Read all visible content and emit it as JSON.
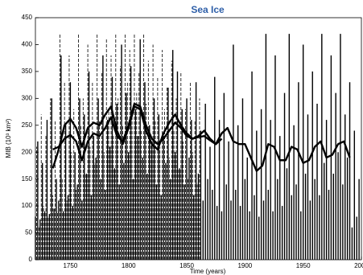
{
  "chart_data": {
    "type": "bar",
    "title": "Sea Ice",
    "xlabel": "Time (years)",
    "ylabel": "MIB (10³ km²)",
    "xlim": [
      1720,
      2000
    ],
    "ylim": [
      0,
      450
    ],
    "xticks": [
      1750,
      1800,
      1850,
      1900,
      1950,
      2000
    ],
    "yticks": [
      0,
      50,
      100,
      150,
      200,
      250,
      300,
      350,
      400,
      450
    ],
    "series": [
      {
        "color": "#000000",
        "style": "dashed",
        "x": [
          1721,
          1723,
          1725,
          1727,
          1729,
          1731,
          1733,
          1735,
          1737,
          1739,
          1741,
          1743,
          1745,
          1747,
          1749,
          1751,
          1753,
          1755,
          1757,
          1759,
          1761,
          1763,
          1765,
          1767,
          1769,
          1771,
          1773,
          1775,
          1777,
          1779,
          1781,
          1783,
          1785,
          1787,
          1789,
          1791,
          1793,
          1795,
          1797,
          1799,
          1801,
          1803,
          1805,
          1807,
          1809,
          1811,
          1813,
          1815,
          1817,
          1819,
          1821,
          1823,
          1825,
          1827,
          1829,
          1831,
          1833,
          1835,
          1837,
          1839,
          1841,
          1843,
          1845,
          1847,
          1849,
          1851,
          1853,
          1855,
          1857,
          1859,
          1861
        ],
        "values": [
          210,
          60,
          270,
          100,
          230,
          80,
          300,
          120,
          260,
          90,
          420,
          150,
          330,
          110,
          380,
          200,
          280,
          130,
          420,
          250,
          300,
          160,
          400,
          210,
          330,
          180,
          420,
          260,
          350,
          200,
          410,
          280,
          380,
          230,
          420,
          300,
          360,
          250,
          420,
          330,
          390,
          270,
          420,
          310,
          350,
          240,
          420,
          290,
          370,
          220,
          400,
          260,
          340,
          210,
          390,
          280,
          320,
          190,
          370,
          240,
          300,
          170,
          350,
          220,
          280,
          150,
          330,
          200,
          260,
          140,
          300
        ]
      },
      {
        "color": "#000000",
        "style": "solid",
        "x": [
          1720,
          1722,
          1724,
          1726,
          1728,
          1730,
          1732,
          1734,
          1736,
          1738,
          1740,
          1742,
          1744,
          1746,
          1748,
          1750,
          1752,
          1754,
          1756,
          1758,
          1760,
          1762,
          1764,
          1766,
          1768,
          1770,
          1772,
          1774,
          1776,
          1778,
          1780,
          1782,
          1784,
          1786,
          1788,
          1790,
          1792,
          1794,
          1796,
          1798,
          1800,
          1802,
          1804,
          1806,
          1808,
          1810,
          1812,
          1814,
          1816,
          1818,
          1820,
          1822,
          1824,
          1826,
          1828,
          1830,
          1832,
          1834,
          1836,
          1838,
          1840,
          1842,
          1844,
          1846,
          1848,
          1850,
          1852,
          1854,
          1856,
          1858,
          1860,
          1862,
          1864,
          1866,
          1868,
          1870,
          1872,
          1874,
          1876,
          1878,
          1880,
          1882,
          1884,
          1886,
          1888,
          1890,
          1892,
          1894,
          1896,
          1898,
          1900,
          1902,
          1904,
          1906,
          1908,
          1910,
          1912,
          1914,
          1916,
          1918,
          1920,
          1922,
          1924,
          1926,
          1928,
          1930,
          1932,
          1934,
          1936,
          1938,
          1940,
          1942,
          1944,
          1946,
          1948,
          1950,
          1952,
          1954,
          1956,
          1958,
          1960,
          1962,
          1964,
          1966,
          1968,
          1970,
          1972,
          1974,
          1976,
          1978,
          1980,
          1982,
          1984,
          1986,
          1988,
          1990,
          1992,
          1994,
          1996,
          1998
        ],
        "values": [
          80,
          220,
          75,
          180,
          90,
          260,
          85,
          300,
          95,
          150,
          110,
          380,
          90,
          250,
          120,
          330,
          100,
          200,
          140,
          300,
          110,
          270,
          160,
          350,
          120,
          230,
          190,
          300,
          150,
          380,
          130,
          260,
          210,
          340,
          170,
          290,
          140,
          400,
          180,
          310,
          200,
          360,
          150,
          280,
          230,
          410,
          190,
          330,
          160,
          250,
          220,
          300,
          140,
          270,
          120,
          230,
          180,
          320,
          150,
          390,
          200,
          350,
          170,
          280,
          140,
          300,
          190,
          260,
          120,
          330,
          160,
          240,
          110,
          290,
          150,
          210,
          130,
          340,
          100,
          260,
          90,
          310,
          140,
          220,
          110,
          400,
          130,
          250,
          100,
          300,
          150,
          190,
          90,
          350,
          120,
          240,
          80,
          280,
          110,
          420,
          130,
          260,
          90,
          380,
          150,
          230,
          100,
          310,
          170,
          420,
          120,
          250,
          140,
          330,
          90,
          400,
          160,
          270,
          110,
          350,
          150,
          290,
          120,
          420,
          180,
          260,
          130,
          380,
          160,
          310,
          200,
          420,
          140,
          270,
          190,
          330,
          60,
          240,
          80,
          150
        ]
      }
    ],
    "lines": [
      {
        "color": "#000000",
        "x": [
          1735,
          1740,
          1745,
          1750,
          1755,
          1760,
          1765,
          1770,
          1775,
          1780,
          1785,
          1790,
          1795,
          1800,
          1805,
          1810,
          1815,
          1820,
          1825,
          1830,
          1835,
          1840,
          1845,
          1850,
          1855,
          1860,
          1865,
          1870,
          1875,
          1880,
          1885,
          1890,
          1895,
          1900,
          1905,
          1910,
          1915,
          1920,
          1925,
          1930,
          1935,
          1940,
          1945,
          1950,
          1955,
          1960,
          1965,
          1970,
          1975,
          1980,
          1985,
          1990
        ],
        "values": [
          170,
          205,
          250,
          262,
          245,
          210,
          245,
          255,
          250,
          270,
          285,
          240,
          215,
          245,
          285,
          280,
          240,
          215,
          205,
          235,
          255,
          270,
          250,
          235,
          225,
          230,
          240,
          225,
          215,
          235,
          245,
          220,
          215,
          215,
          190,
          165,
          175,
          215,
          210,
          185,
          185,
          210,
          205,
          180,
          185,
          210,
          220,
          190,
          195,
          215,
          220,
          190
        ]
      },
      {
        "color": "#000000",
        "x": [
          1735,
          1740,
          1745,
          1750,
          1755,
          1760,
          1765,
          1770,
          1775,
          1780,
          1785,
          1790,
          1795,
          1800,
          1805,
          1810,
          1815,
          1820,
          1825,
          1830,
          1835,
          1840,
          1845,
          1850,
          1855,
          1860,
          1865,
          1870,
          1875,
          1880,
          1885,
          1890,
          1895,
          1900,
          1905,
          1910,
          1915,
          1920,
          1925,
          1930,
          1935,
          1940,
          1945,
          1950,
          1955,
          1960,
          1965,
          1970,
          1975,
          1980,
          1985,
          1990
        ],
        "values": [
          205,
          210,
          225,
          232,
          220,
          185,
          220,
          235,
          230,
          245,
          265,
          230,
          220,
          250,
          290,
          285,
          250,
          225,
          215,
          225,
          240,
          255,
          245,
          230,
          225,
          228,
          230,
          222,
          215,
          225,
          null,
          null,
          null,
          null,
          null,
          null,
          null,
          null,
          null,
          null,
          null,
          null,
          null,
          null,
          null,
          null,
          null,
          null,
          null,
          null,
          null,
          null
        ]
      }
    ]
  }
}
